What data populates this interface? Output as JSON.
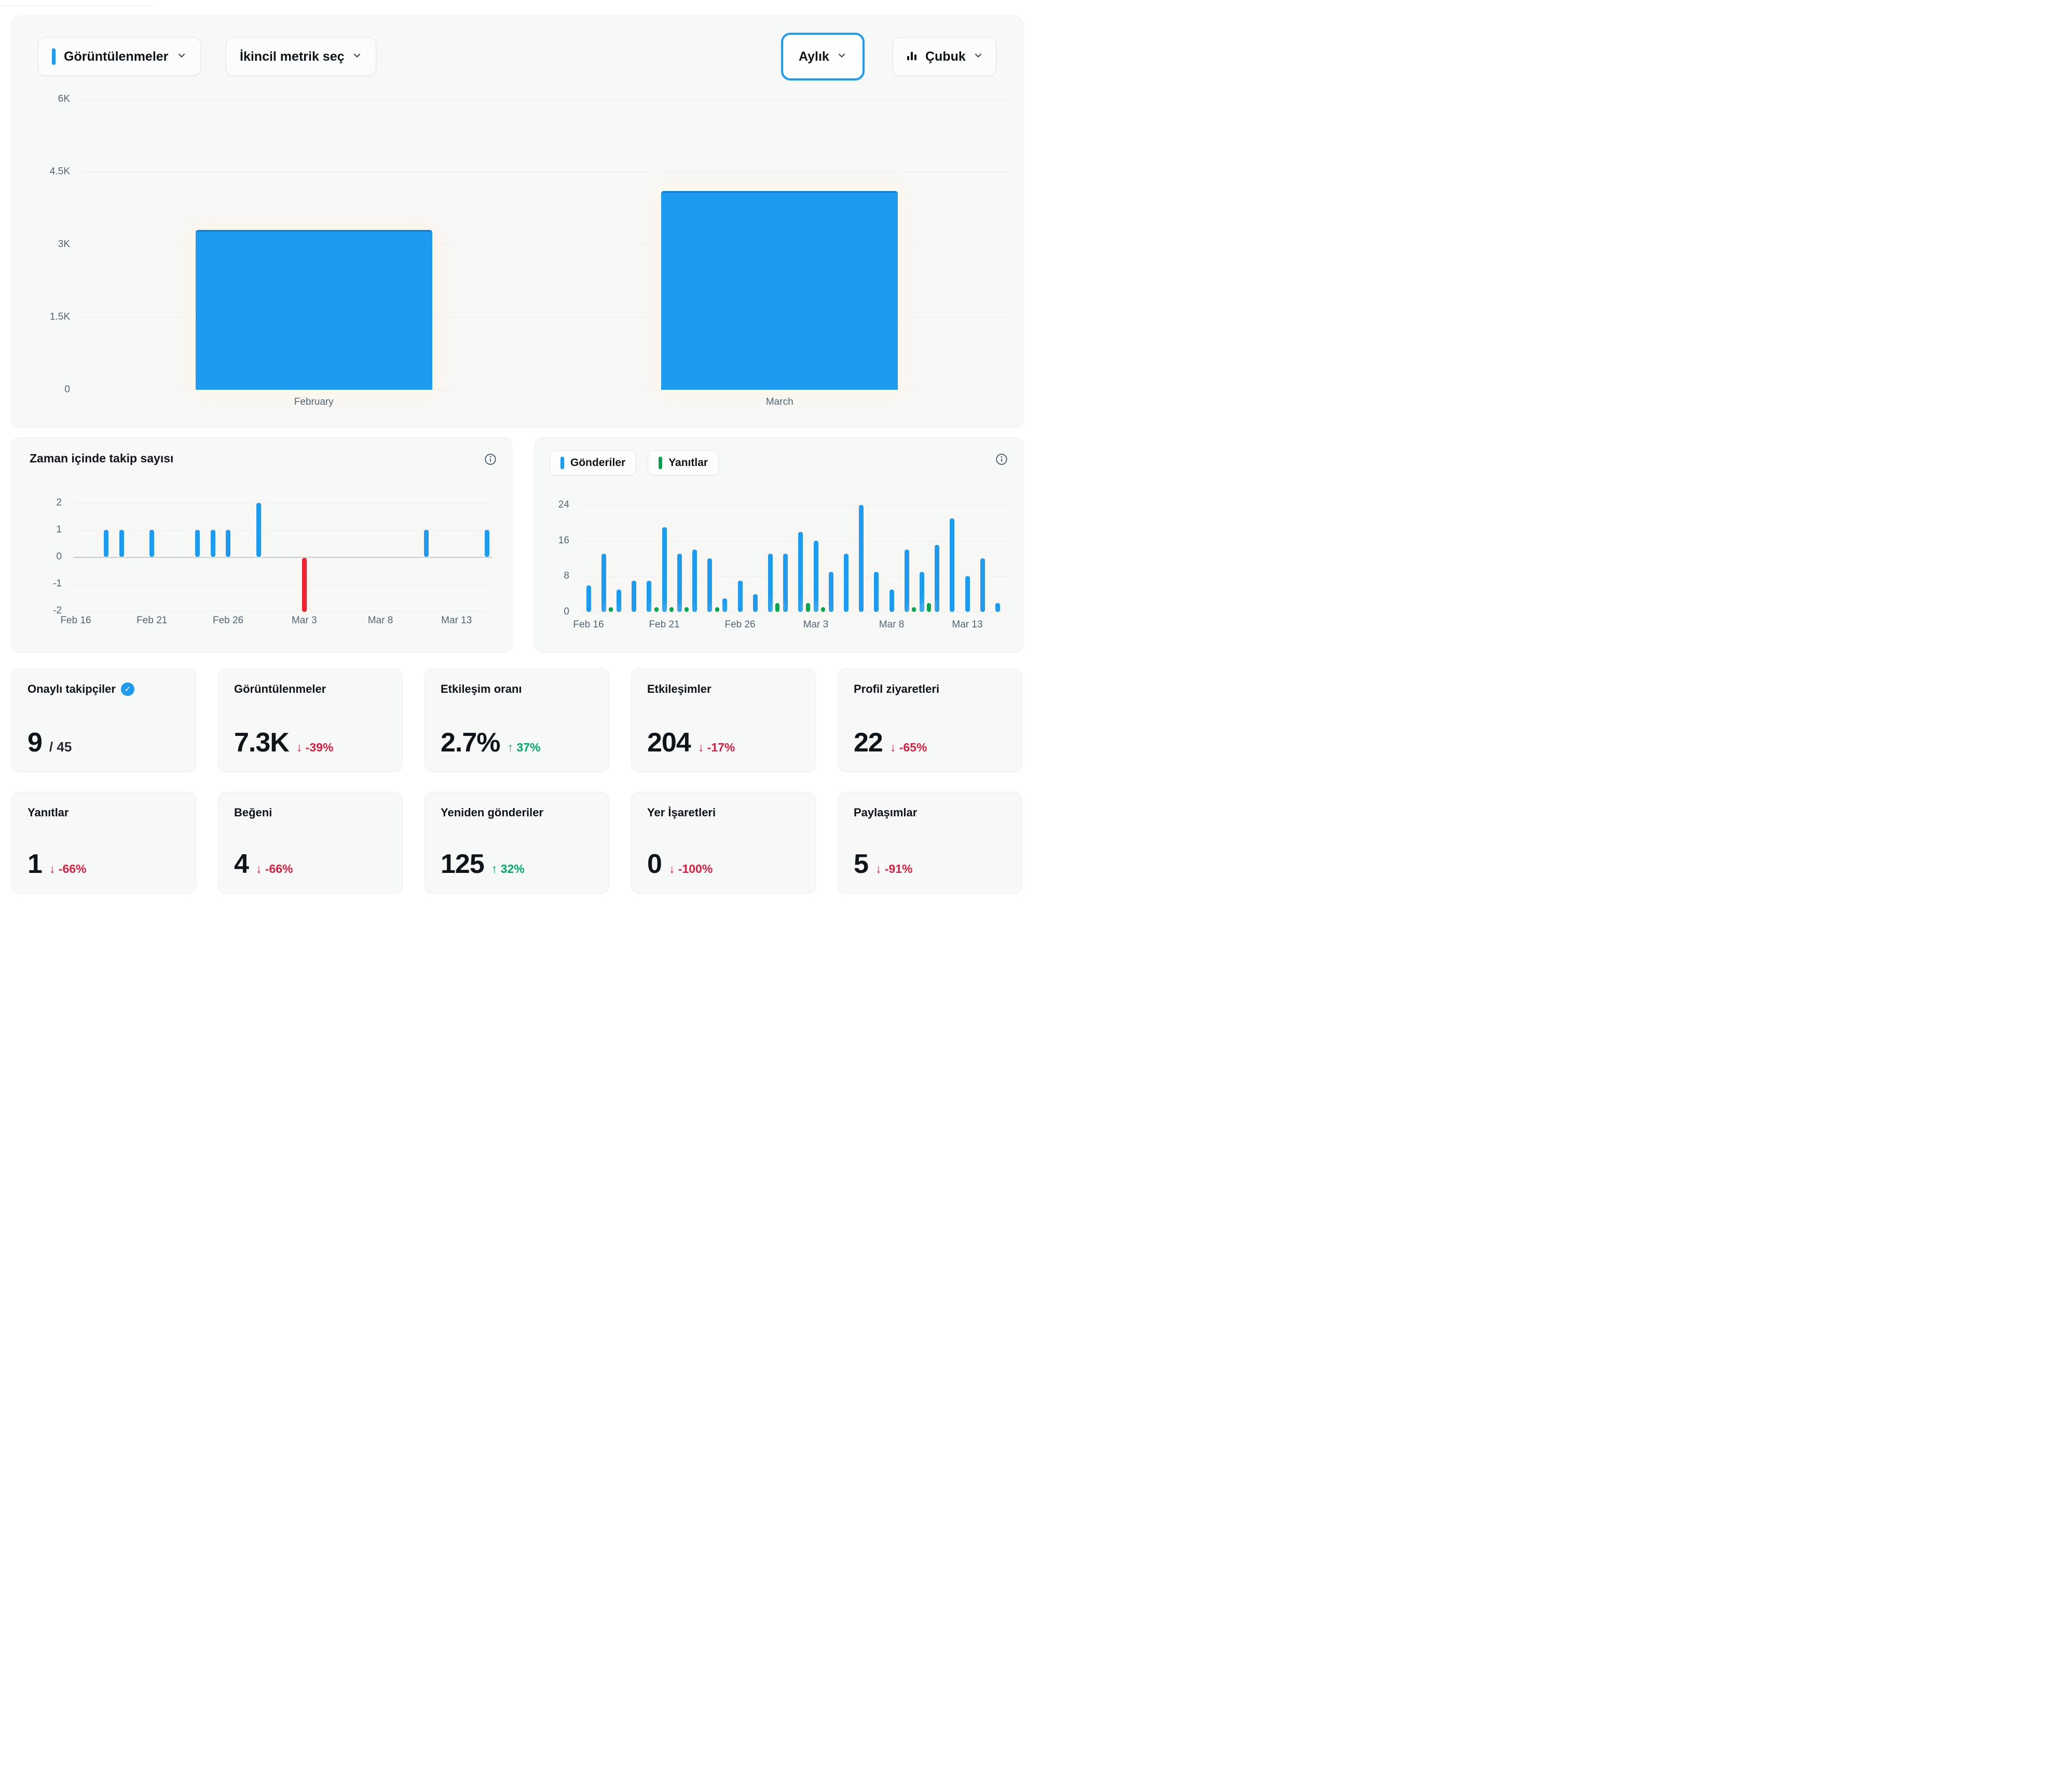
{
  "colors": {
    "blue": "#1d9bf0",
    "chart_red": "#ee2230",
    "chart_green": "#00a550",
    "delta_up": "#00a96c",
    "delta_down": "#dc2140",
    "text": "#0f1419",
    "muted": "#536471"
  },
  "controls": {
    "primary_metric": "Görüntülenmeler",
    "secondary_metric": "İkincil metrik seç",
    "period": "Aylık",
    "chart_type": "Çubuk"
  },
  "icons": {
    "arrow_up": "↑",
    "arrow_down": "↓",
    "check": "✓"
  },
  "chart_data": [
    {
      "id": "views-monthly",
      "type": "bar",
      "categories": [
        "February",
        "March"
      ],
      "values": [
        3300,
        4100
      ],
      "ylim": [
        0,
        6000
      ],
      "yticks": [
        {
          "label": "6K",
          "value": 6000
        },
        {
          "label": "4.5K",
          "value": 4500
        },
        {
          "label": "3K",
          "value": 3000
        },
        {
          "label": "1.5K",
          "value": 1500
        },
        {
          "label": "0",
          "value": 0
        }
      ],
      "bar_color": "#1d9bf0",
      "grid": true,
      "legend_position": "none"
    },
    {
      "id": "follows-over-time",
      "type": "bar",
      "title": "Zaman içinde takip sayısı",
      "ylim": [
        -2,
        2
      ],
      "yticks": [
        2,
        1,
        0,
        -1,
        -2
      ],
      "x_tick_labels": [
        "Feb 16",
        "Feb 21",
        "Feb 26",
        "Mar 3",
        "Mar 8",
        "Mar 13"
      ],
      "x_tick_days": [
        0,
        5,
        10,
        15,
        20,
        25
      ],
      "points": [
        {
          "day": 2,
          "date": "Feb 18",
          "value": 1
        },
        {
          "day": 3,
          "date": "Feb 19",
          "value": 1
        },
        {
          "day": 5,
          "date": "Feb 21",
          "value": 1
        },
        {
          "day": 8,
          "date": "Feb 24",
          "value": 1
        },
        {
          "day": 9,
          "date": "Feb 25",
          "value": 1
        },
        {
          "day": 10,
          "date": "Feb 26",
          "value": 1
        },
        {
          "day": 12,
          "date": "Feb 28",
          "value": 2
        },
        {
          "day": 15,
          "date": "Mar 3",
          "value": -2
        },
        {
          "day": 23,
          "date": "Mar 11",
          "value": 1
        },
        {
          "day": 27,
          "date": "Mar 15",
          "value": 1
        }
      ],
      "positive_color": "#1d9bf0",
      "negative_color": "#ee2230",
      "grid": true
    },
    {
      "id": "posts-and-replies",
      "type": "bar",
      "ylim": [
        0,
        24
      ],
      "yticks": [
        24,
        16,
        8,
        0
      ],
      "x_tick_labels": [
        "Feb 16",
        "Feb 21",
        "Feb 26",
        "Mar 3",
        "Mar 8",
        "Mar 13"
      ],
      "x_tick_days": [
        0,
        5,
        10,
        15,
        20,
        25
      ],
      "legend_position": "top-left",
      "series": [
        {
          "name": "Gönderiler",
          "color": "#1d9bf0",
          "start_date": "Feb 16",
          "values": [
            6,
            13,
            5,
            7,
            7,
            19,
            13,
            14,
            12,
            3,
            7,
            4,
            13,
            13,
            18,
            16,
            9,
            13,
            24,
            9,
            5,
            14,
            9,
            15,
            21,
            8,
            12,
            2
          ]
        },
        {
          "name": "Yanıtlar",
          "color": "#00a550",
          "points": [
            {
              "day": 1,
              "date": "Feb 17",
              "value": 1
            },
            {
              "day": 4,
              "date": "Feb 20",
              "value": 1
            },
            {
              "day": 5,
              "date": "Feb 21",
              "value": 1
            },
            {
              "day": 6,
              "date": "Feb 22",
              "value": 1
            },
            {
              "day": 8,
              "date": "Feb 24",
              "value": 1
            },
            {
              "day": 12,
              "date": "Feb 28",
              "value": 2
            },
            {
              "day": 14,
              "date": "Mar 2",
              "value": 2
            },
            {
              "day": 15,
              "date": "Mar 3",
              "value": 1
            },
            {
              "day": 21,
              "date": "Mar 9",
              "value": 1
            },
            {
              "day": 22,
              "date": "Mar 10",
              "value": 2
            }
          ]
        }
      ]
    }
  ],
  "stat_rows": [
    [
      {
        "label": "Onaylı takipçiler",
        "verified_badge": true,
        "value": "9",
        "suffix": "/ 45"
      },
      {
        "label": "Görüntülenmeler",
        "value": "7.3K",
        "delta": "-39%",
        "direction": "down"
      },
      {
        "label": "Etkileşim oranı",
        "value": "2.7%",
        "delta": "37%",
        "direction": "up"
      },
      {
        "label": "Etkileşimler",
        "value": "204",
        "delta": "-17%",
        "direction": "down"
      },
      {
        "label": "Profil ziyaretleri",
        "value": "22",
        "delta": "-65%",
        "direction": "down"
      }
    ],
    [
      {
        "label": "Yanıtlar",
        "value": "1",
        "delta": "-66%",
        "direction": "down"
      },
      {
        "label": "Beğeni",
        "value": "4",
        "delta": "-66%",
        "direction": "down"
      },
      {
        "label": "Yeniden gönderiler",
        "value": "125",
        "delta": "32%",
        "direction": "up"
      },
      {
        "label": "Yer İşaretleri",
        "value": "0",
        "delta": "-100%",
        "direction": "down"
      },
      {
        "label": "Paylaşımlar",
        "value": "5",
        "delta": "-91%",
        "direction": "down"
      }
    ]
  ]
}
